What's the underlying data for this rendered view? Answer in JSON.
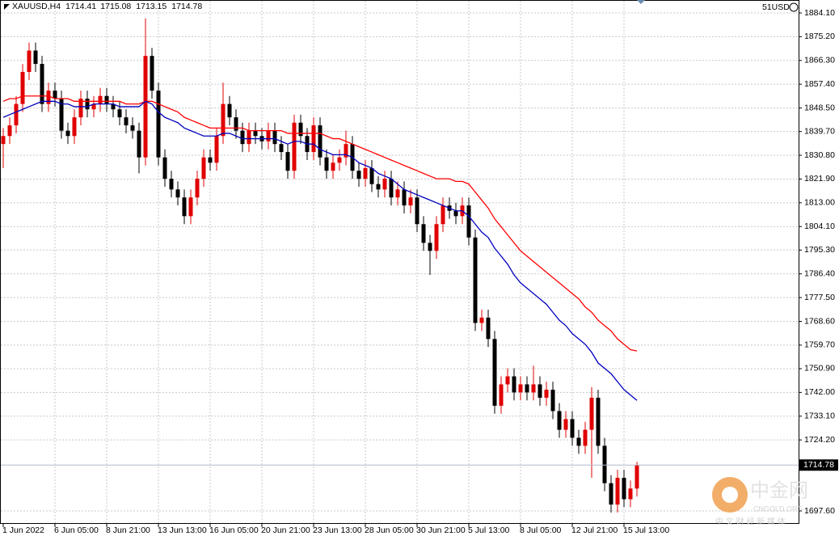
{
  "chart_data": {
    "type": "candlestick",
    "symbol": "XAUUSD,H4",
    "quote": [
      1714.41,
      1715.08,
      1713.15,
      1714.78
    ],
    "account_label": "51USD",
    "current_price": 1714.78,
    "up_color": "#e00000",
    "down_color": "#000000",
    "grid": true,
    "ylim": [
      1692.76,
      1888.94
    ],
    "yticks": [
      {
        "value": 1884.1,
        "label": "1884.10"
      },
      {
        "value": 1875.2,
        "label": "1875.20"
      },
      {
        "value": 1866.3,
        "label": "1866.30"
      },
      {
        "value": 1857.4,
        "label": "1857.40"
      },
      {
        "value": 1848.5,
        "label": "1848.50"
      },
      {
        "value": 1839.7,
        "label": "1839.70"
      },
      {
        "value": 1830.8,
        "label": "1830.80"
      },
      {
        "value": 1821.9,
        "label": "1821.90"
      },
      {
        "value": 1813,
        "label": "1813.00"
      },
      {
        "value": 1804.1,
        "label": "1804.10"
      },
      {
        "value": 1795.3,
        "label": "1795.30"
      },
      {
        "value": 1786.4,
        "label": "1786.40"
      },
      {
        "value": 1777.5,
        "label": "1777.50"
      },
      {
        "value": 1768.6,
        "label": "1768.60"
      },
      {
        "value": 1759.7,
        "label": "1759.70"
      },
      {
        "value": 1750.9,
        "label": "1750.90"
      },
      {
        "value": 1742,
        "label": "1742.00"
      },
      {
        "value": 1733.1,
        "label": "1733.10"
      },
      {
        "value": 1724.2,
        "label": "1724.20"
      },
      {
        "value": 1697.6,
        "label": "1697.60"
      }
    ],
    "categories": [
      "1 Jun 2022",
      null,
      null,
      null,
      null,
      null,
      null,
      null,
      "6 Jun 05:00",
      null,
      null,
      null,
      null,
      null,
      null,
      null,
      "8 Jun 21:00",
      null,
      null,
      null,
      null,
      null,
      null,
      null,
      "13 Jun 13:00",
      null,
      null,
      null,
      null,
      null,
      null,
      null,
      "16 Jun 05:00",
      null,
      null,
      null,
      null,
      null,
      null,
      null,
      "20 Jun 21:00",
      null,
      null,
      null,
      null,
      null,
      null,
      null,
      "23 Jun 13:00",
      null,
      null,
      null,
      null,
      null,
      null,
      null,
      "28 Jun 05:00",
      null,
      null,
      null,
      null,
      null,
      null,
      null,
      "30 Jun 21:00",
      null,
      null,
      null,
      null,
      null,
      null,
      null,
      "5 Jul 13:00",
      null,
      null,
      null,
      null,
      null,
      null,
      null,
      "8 Jul 05:00",
      null,
      null,
      null,
      null,
      null,
      null,
      null,
      "12 Jul 21:00",
      null,
      null,
      null,
      null,
      null,
      null,
      null,
      "15 Jul 13:00",
      null,
      null
    ],
    "open": [
      1835,
      1838,
      1842,
      1850,
      1862,
      1870,
      1865,
      1850,
      1855,
      1852,
      1840,
      1838,
      1845,
      1852,
      1848,
      1850,
      1853,
      1850,
      1848,
      1845,
      1842,
      1840,
      1830,
      1868,
      1855,
      1830,
      1822,
      1818,
      1815,
      1808,
      1815,
      1822,
      1830,
      1828,
      1838,
      1850,
      1845,
      1840,
      1835,
      1840,
      1838,
      1836,
      1840,
      1835,
      1832,
      1825,
      1843,
      1838,
      1832,
      1842,
      1830,
      1825,
      1828,
      1830,
      1835,
      1825,
      1822,
      1826,
      1820,
      1818,
      1822,
      1815,
      1818,
      1812,
      1815,
      1805,
      1798,
      1795,
      1805,
      1812,
      1810,
      1808,
      1812,
      1800,
      1768,
      1770,
      1762,
      1737,
      1745,
      1748,
      1742,
      1745,
      1742,
      1745,
      1740,
      1743,
      1735,
      1728,
      1732,
      1725,
      1722,
      1728,
      1740,
      1722,
      1708,
      1700,
      1710,
      1702,
      1706
    ],
    "high": [
      1841,
      1845,
      1853,
      1865,
      1873,
      1873,
      1868,
      1858,
      1858,
      1855,
      1843,
      1848,
      1855,
      1855,
      1853,
      1856,
      1856,
      1853,
      1851,
      1848,
      1845,
      1843,
      1882,
      1871,
      1858,
      1833,
      1825,
      1821,
      1818,
      1818,
      1825,
      1833,
      1833,
      1841,
      1858,
      1853,
      1848,
      1843,
      1843,
      1843,
      1841,
      1843,
      1843,
      1838,
      1835,
      1846,
      1846,
      1841,
      1845,
      1845,
      1833,
      1831,
      1833,
      1840,
      1838,
      1828,
      1829,
      1829,
      1823,
      1825,
      1825,
      1821,
      1821,
      1818,
      1818,
      1808,
      1801,
      1808,
      1815,
      1815,
      1813,
      1815,
      1815,
      1803,
      1773,
      1773,
      1765,
      1748,
      1751,
      1751,
      1748,
      1748,
      1752,
      1748,
      1746,
      1746,
      1738,
      1735,
      1735,
      1728,
      1731,
      1744,
      1743,
      1725,
      1711,
      1713,
      1713,
      1709,
      1716
    ],
    "low": [
      1826,
      1835,
      1839,
      1847,
      1859,
      1862,
      1847,
      1847,
      1849,
      1837,
      1835,
      1835,
      1842,
      1845,
      1845,
      1847,
      1847,
      1845,
      1842,
      1839,
      1837,
      1824,
      1827,
      1852,
      1827,
      1819,
      1815,
      1812,
      1805,
      1805,
      1812,
      1819,
      1825,
      1825,
      1835,
      1842,
      1837,
      1832,
      1832,
      1835,
      1833,
      1833,
      1832,
      1829,
      1822,
      1822,
      1835,
      1829,
      1829,
      1827,
      1822,
      1822,
      1825,
      1827,
      1822,
      1819,
      1819,
      1817,
      1815,
      1815,
      1812,
      1812,
      1809,
      1809,
      1802,
      1795,
      1786,
      1792,
      1802,
      1807,
      1805,
      1805,
      1797,
      1765,
      1765,
      1759,
      1734,
      1734,
      1742,
      1739,
      1739,
      1739,
      1739,
      1737,
      1737,
      1732,
      1725,
      1725,
      1722,
      1719,
      1719,
      1710,
      1719,
      1705,
      1697,
      1697,
      1699,
      1699,
      1703
    ],
    "close": [
      1838,
      1842,
      1850,
      1862,
      1870,
      1865,
      1850,
      1855,
      1852,
      1840,
      1838,
      1845,
      1852,
      1848,
      1850,
      1853,
      1850,
      1848,
      1845,
      1842,
      1840,
      1830,
      1868,
      1855,
      1830,
      1822,
      1818,
      1815,
      1808,
      1815,
      1822,
      1830,
      1828,
      1838,
      1850,
      1845,
      1840,
      1835,
      1840,
      1838,
      1836,
      1840,
      1835,
      1832,
      1825,
      1843,
      1838,
      1832,
      1842,
      1830,
      1825,
      1828,
      1830,
      1835,
      1825,
      1822,
      1826,
      1820,
      1818,
      1822,
      1815,
      1818,
      1812,
      1815,
      1805,
      1798,
      1795,
      1805,
      1812,
      1810,
      1808,
      1812,
      1800,
      1768,
      1770,
      1762,
      1737,
      1745,
      1748,
      1742,
      1745,
      1742,
      1745,
      1740,
      1743,
      1735,
      1728,
      1732,
      1725,
      1722,
      1728,
      1740,
      1722,
      1708,
      1700,
      1710,
      1702,
      1706,
      1714.78
    ],
    "series": [
      {
        "color": "#ff0000",
        "values": [
          1851,
          1852,
          1852,
          1853,
          1853,
          1853,
          1853,
          1853,
          1852,
          1852,
          1852,
          1851,
          1851,
          1851,
          1851,
          1851,
          1851,
          1851,
          1851,
          1850,
          1850,
          1850,
          1851,
          1851,
          1850,
          1849,
          1848,
          1847,
          1845,
          1844,
          1843,
          1842,
          1841,
          1841,
          1841,
          1841,
          1841,
          1841,
          1840,
          1840,
          1840,
          1840,
          1840,
          1840,
          1839,
          1839,
          1839,
          1839,
          1839,
          1839,
          1838,
          1837,
          1837,
          1836,
          1835,
          1834,
          1833,
          1832,
          1831,
          1830,
          1829,
          1828,
          1827,
          1826,
          1825,
          1824,
          1823,
          1822,
          1822,
          1822,
          1821,
          1821,
          1820,
          1817,
          1814,
          1811,
          1807,
          1804,
          1801,
          1798,
          1795,
          1793,
          1791,
          1789,
          1787,
          1785,
          1783,
          1781,
          1779,
          1777,
          1774,
          1772,
          1769,
          1767,
          1765,
          1762,
          1760,
          1758,
          1757.5
        ]
      },
      {
        "color": "#0000c0",
        "values": [
          1845,
          1846,
          1847,
          1848,
          1849,
          1850,
          1851,
          1851,
          1851,
          1850,
          1850,
          1849,
          1849,
          1849,
          1850,
          1850,
          1850,
          1850,
          1849,
          1849,
          1849,
          1849,
          1851,
          1850,
          1847,
          1845,
          1844,
          1843,
          1841,
          1840,
          1839,
          1838,
          1838,
          1838,
          1839,
          1839,
          1838,
          1837,
          1837,
          1837,
          1837,
          1837,
          1837,
          1836,
          1835,
          1836,
          1836,
          1835,
          1835,
          1833,
          1832,
          1831,
          1831,
          1831,
          1830,
          1828,
          1827,
          1826,
          1824,
          1823,
          1822,
          1820,
          1818,
          1817,
          1816,
          1815,
          1814,
          1813,
          1812,
          1811,
          1810,
          1810,
          1808,
          1805,
          1802,
          1800,
          1796,
          1793,
          1790,
          1786,
          1783,
          1781,
          1779,
          1777,
          1775,
          1772,
          1769,
          1767,
          1764,
          1762,
          1760,
          1757,
          1753,
          1751,
          1749,
          1746,
          1743,
          1741,
          1739
        ]
      }
    ]
  },
  "watermark": {
    "brand": "中金网",
    "site": "CNGOLD.ORG",
    "slogan": "中 文 财 经 新 媒 体"
  }
}
